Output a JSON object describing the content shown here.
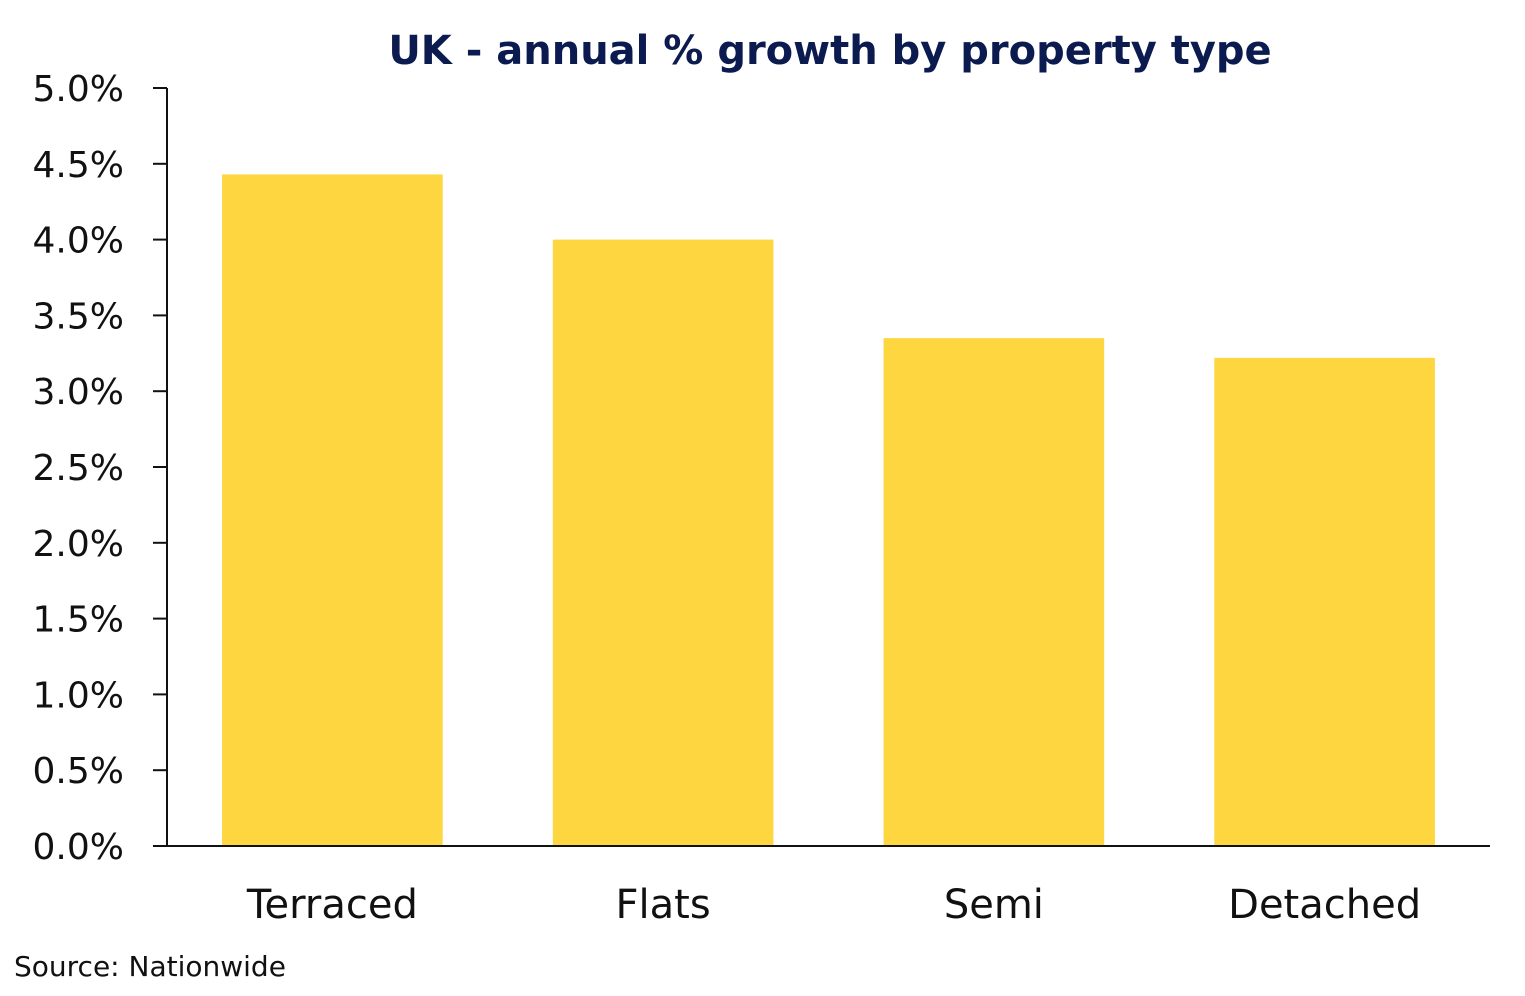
{
  "chart_data": {
    "type": "bar",
    "title": "UK - annual % growth by property type",
    "xlabel": "",
    "ylabel": "",
    "categories": [
      "Terraced",
      "Flats",
      "Semi",
      "Detached"
    ],
    "values": [
      4.43,
      4.0,
      3.35,
      3.22
    ],
    "ylim": [
      0,
      5.0
    ],
    "yticks": [
      0.0,
      0.5,
      1.0,
      1.5,
      2.0,
      2.5,
      3.0,
      3.5,
      4.0,
      4.5,
      5.0
    ],
    "ytick_labels": [
      "0.0%",
      "0.5%",
      "1.0%",
      "1.5%",
      "2.0%",
      "2.5%",
      "3.0%",
      "3.5%",
      "4.0%",
      "4.5%",
      "5.0%"
    ],
    "grid": false,
    "legend": "none",
    "bar_color": "#fdd640",
    "title_color": "#0b1b4f",
    "source": "Source: Nationwide"
  }
}
